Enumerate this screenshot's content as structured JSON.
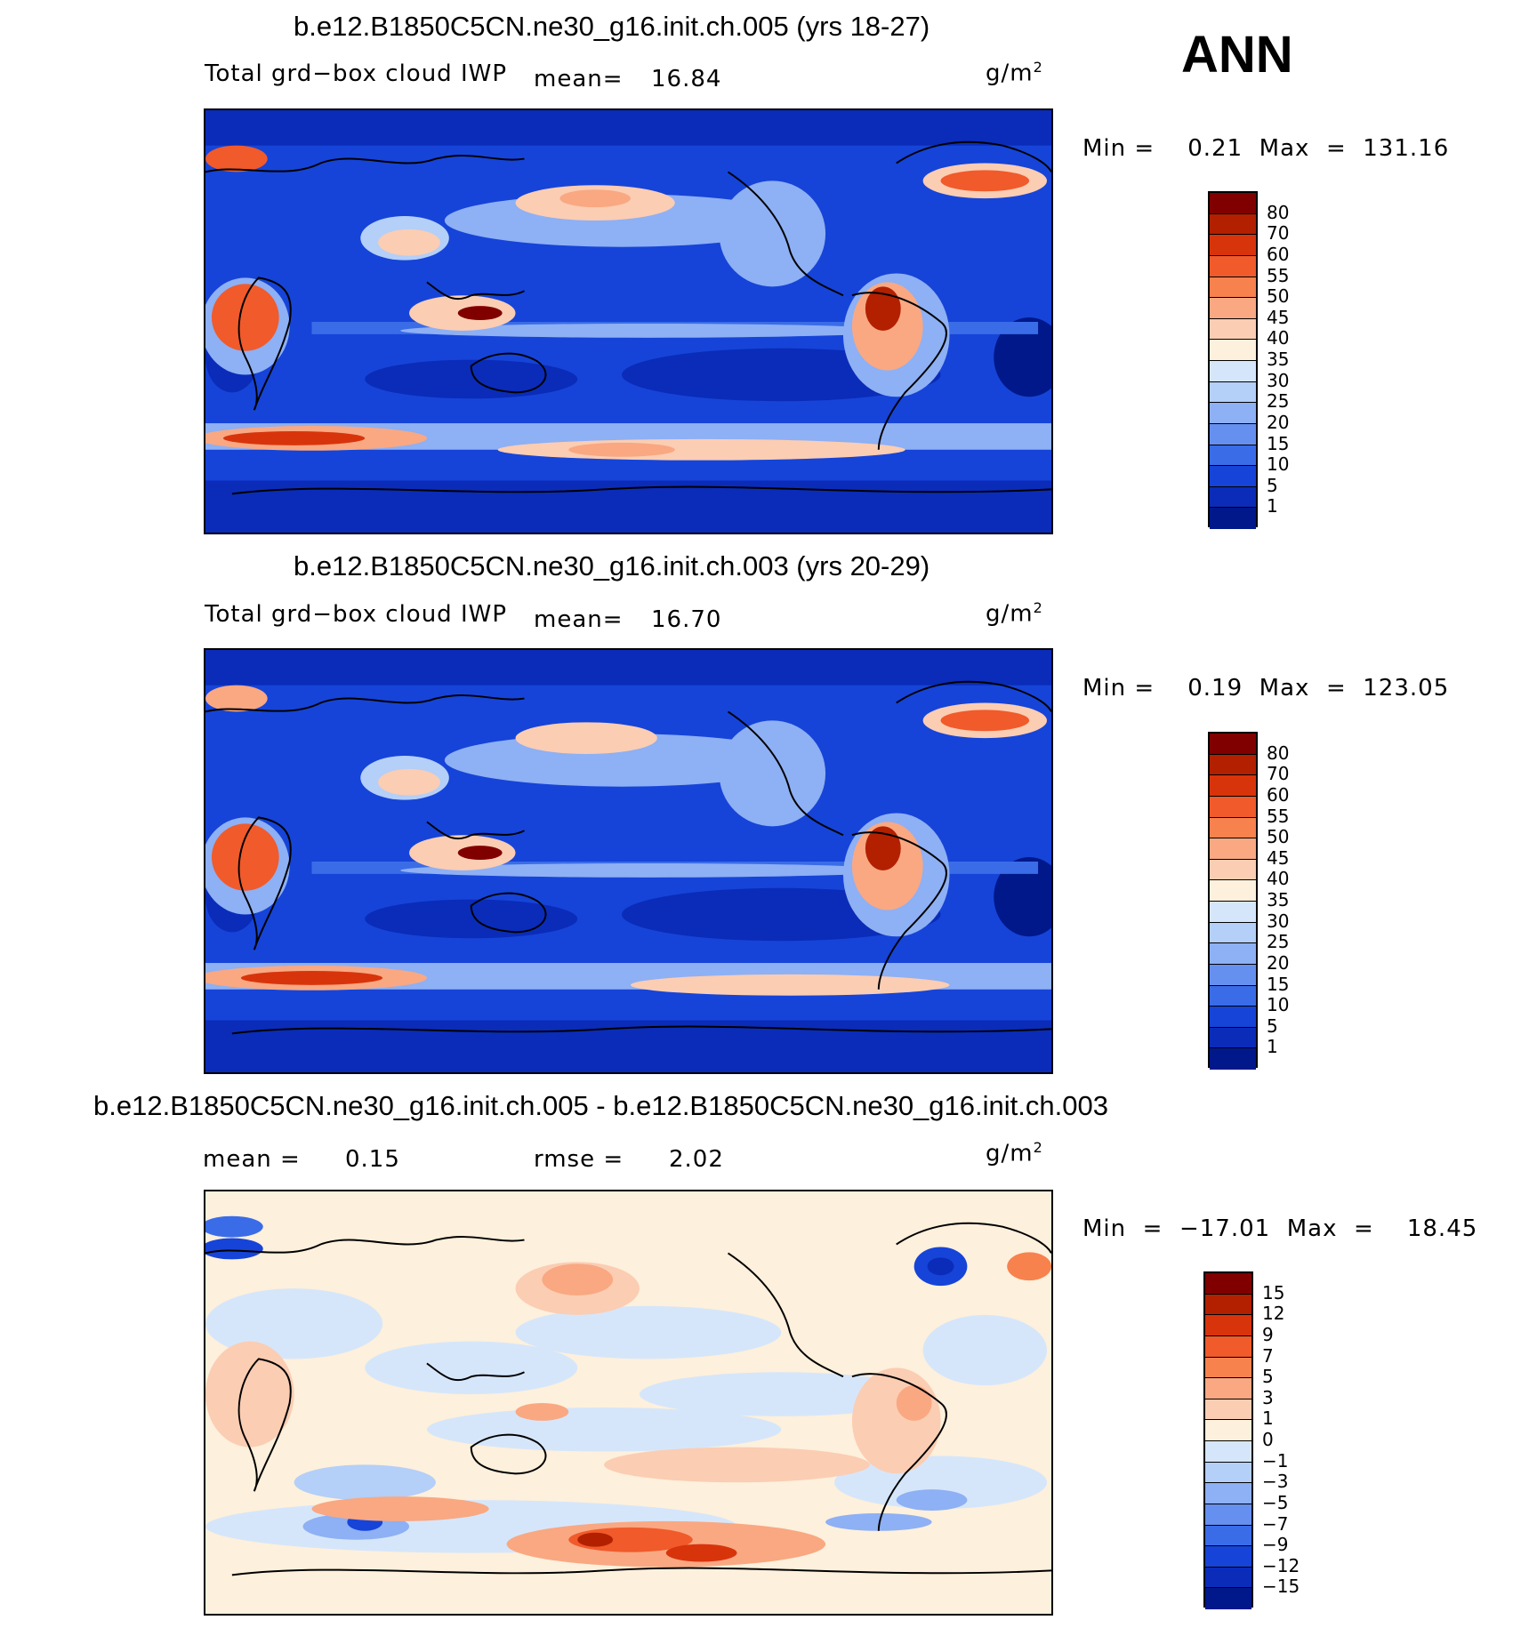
{
  "season": "ANN",
  "units_label": "g/m",
  "units_sup": "2",
  "panels": [
    {
      "title": "b.e12.B1850C5CN.ne30_g16.init.ch.005 (yrs 18-27)",
      "var_label": "Total grd−box cloud IWP",
      "mean_text": "mean=",
      "mean_value": "16.84",
      "minmax": "Min =    0.21  Max  =  131.16"
    },
    {
      "title": "b.e12.B1850C5CN.ne30_g16.init.ch.003 (yrs 20-29)",
      "var_label": "Total grd−box cloud IWP",
      "mean_text": "mean=",
      "mean_value": "16.70",
      "minmax": "Min =    0.19  Max  =  123.05"
    },
    {
      "title": "b.e12.B1850C5CN.ne30_g16.init.ch.005 - b.e12.B1850C5CN.ne30_g16.init.ch.003",
      "mean_text": "mean =",
      "mean_value": "0.15",
      "rmse_text": "rmse =",
      "rmse_value": "2.02",
      "minmax": "Min  =  −17.01  Max  =    18.45"
    }
  ],
  "colorbar_abs": {
    "labels": [
      "80",
      "70",
      "60",
      "55",
      "50",
      "45",
      "40",
      "35",
      "30",
      "25",
      "20",
      "15",
      "10",
      "5",
      "1"
    ],
    "colors": [
      "#800000",
      "#b22000",
      "#d8340c",
      "#f15a2a",
      "#f7824e",
      "#f9a882",
      "#fbcdb3",
      "#fdf0dc",
      "#d6e6fa",
      "#b4cff8",
      "#8eb0f4",
      "#6690f0",
      "#3a6ce8",
      "#1644d8",
      "#0a2cb8",
      "#00188a"
    ]
  },
  "colorbar_diff": {
    "labels": [
      "15",
      "12",
      "9",
      "7",
      "5",
      "3",
      "1",
      "0",
      "−1",
      "−3",
      "−5",
      "−7",
      "−9",
      "−12",
      "−15"
    ],
    "colors": [
      "#800000",
      "#b22000",
      "#d8340c",
      "#f15a2a",
      "#f7824e",
      "#f9a882",
      "#fbcdb3",
      "#fdf0dc",
      "#d6e6fa",
      "#b4cff8",
      "#8eb0f4",
      "#6690f0",
      "#3a6ce8",
      "#1644d8",
      "#0a2cb8",
      "#00188a"
    ]
  }
}
